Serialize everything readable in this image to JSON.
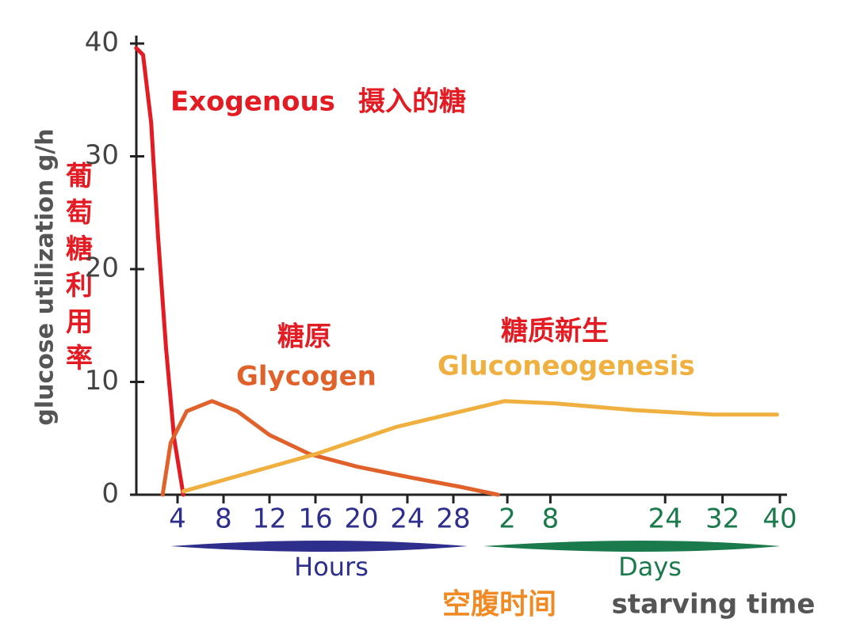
{
  "chart_data": {
    "type": "line",
    "ylabel": "glucose utilization g/h",
    "ylabel_zh": "葡萄糖利用率",
    "xlabel_zh": "空腹时间",
    "xlabel": "starving time",
    "ylim": [
      0,
      40
    ],
    "yticks": [
      0,
      10,
      20,
      30,
      40
    ],
    "x_segments": [
      {
        "label": "Hours",
        "color": "#2e2e8c",
        "xlim": [
          0,
          31
        ],
        "xticks": [
          4,
          8,
          12,
          16,
          20,
          24,
          28
        ]
      },
      {
        "label": "Days",
        "color": "#1b7a4c",
        "xlim": [
          0,
          40
        ],
        "xticks": [
          2,
          8,
          24,
          32,
          40
        ]
      }
    ],
    "series": [
      {
        "name": "Exogenous",
        "name_zh": "摄入的糖",
        "color": "#e31b23",
        "segments": [
          {
            "x": [
              0.4,
              1,
              1.7,
              2.3,
              3,
              3.7,
              4.5
            ],
            "values": [
              39.6,
              39,
              33,
              23,
              13,
              5,
              0
            ]
          },
          {
            "x": [],
            "values": []
          }
        ]
      },
      {
        "name": "Glycogen",
        "name_zh": "糖原",
        "color": "#e0622a",
        "segments": [
          {
            "x": [
              2.7,
              3.4,
              4.8,
              7,
              9.2,
              12,
              15.5,
              19.6,
              24.4,
              28.6
            ],
            "values": [
              0,
              4.6,
              7.4,
              8.3,
              7.4,
              5.3,
              3.6,
              2.5,
              1.5,
              0.7
            ]
          },
          {
            "x": [
              0.7
            ],
            "values": [
              0
            ]
          }
        ]
      },
      {
        "name": "Gluconeogenesis",
        "name_zh": "糖质新生",
        "color": "#f0b040",
        "segments": [
          {
            "x": [
              4.5,
              16,
              23
            ],
            "values": [
              0.3,
              3.6,
              6
            ]
          },
          {
            "x": [
              1.6,
              8.6,
              19.7,
              30.8,
              39.6
            ],
            "values": [
              8.3,
              8.1,
              7.5,
              7.1,
              7.1
            ]
          }
        ]
      }
    ]
  }
}
